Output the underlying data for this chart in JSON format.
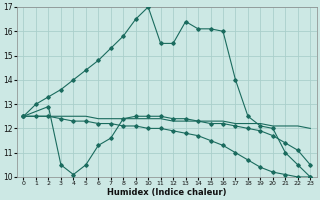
{
  "xlabel": "Humidex (Indice chaleur)",
  "xlim": [
    -0.5,
    23.5
  ],
  "ylim": [
    10,
    17
  ],
  "yticks": [
    10,
    11,
    12,
    13,
    14,
    15,
    16,
    17
  ],
  "xticks": [
    0,
    1,
    2,
    3,
    4,
    5,
    6,
    7,
    8,
    9,
    10,
    11,
    12,
    13,
    14,
    15,
    16,
    17,
    18,
    19,
    20,
    21,
    22,
    23
  ],
  "bg_color": "#cce8e4",
  "grid_color": "#aacfcb",
  "line_color": "#1a6b5e",
  "series": [
    {
      "x": [
        0,
        1,
        2,
        3,
        4,
        5,
        6,
        7,
        8,
        9,
        10,
        11,
        12,
        13,
        14,
        15,
        16,
        17,
        18,
        19,
        20,
        21,
        22,
        23
      ],
      "y": [
        12.5,
        13.0,
        13.3,
        13.6,
        14.0,
        14.4,
        14.8,
        15.3,
        15.8,
        16.5,
        17.0,
        15.5,
        15.5,
        16.4,
        16.1,
        16.1,
        16.0,
        14.0,
        12.5,
        12.1,
        12.0,
        11.0,
        10.5,
        10.0
      ],
      "marker": "D",
      "markersize": 1.8
    },
    {
      "x": [
        0,
        1,
        2,
        3,
        4,
        5,
        6,
        7,
        8,
        9,
        10,
        11,
        12,
        13,
        14,
        15,
        16,
        17,
        18,
        19,
        20,
        21,
        22,
        23
      ],
      "y": [
        12.5,
        12.5,
        12.5,
        12.5,
        12.5,
        12.5,
        12.4,
        12.4,
        12.4,
        12.4,
        12.4,
        12.4,
        12.3,
        12.3,
        12.3,
        12.3,
        12.3,
        12.2,
        12.2,
        12.2,
        12.1,
        12.1,
        12.1,
        12.0
      ],
      "marker": null,
      "markersize": 0
    },
    {
      "x": [
        0,
        2,
        3,
        4,
        5,
        6,
        7,
        8,
        9,
        10,
        11,
        12,
        13,
        14,
        15,
        16,
        17,
        18,
        19,
        20,
        21,
        22,
        23
      ],
      "y": [
        12.5,
        12.9,
        10.5,
        10.1,
        10.5,
        11.3,
        11.6,
        12.4,
        12.5,
        12.5,
        12.5,
        12.4,
        12.4,
        12.3,
        12.2,
        12.2,
        12.1,
        12.0,
        11.9,
        11.7,
        11.4,
        11.1,
        10.5
      ],
      "marker": "D",
      "markersize": 1.8
    },
    {
      "x": [
        0,
        1,
        2,
        3,
        4,
        5,
        6,
        7,
        8,
        9,
        10,
        11,
        12,
        13,
        14,
        15,
        16,
        17,
        18,
        19,
        20,
        21,
        22,
        23
      ],
      "y": [
        12.5,
        12.5,
        12.5,
        12.4,
        12.3,
        12.3,
        12.2,
        12.2,
        12.1,
        12.1,
        12.0,
        12.0,
        11.9,
        11.8,
        11.7,
        11.5,
        11.3,
        11.0,
        10.7,
        10.4,
        10.2,
        10.1,
        10.0,
        10.0
      ],
      "marker": "D",
      "markersize": 1.8
    }
  ]
}
